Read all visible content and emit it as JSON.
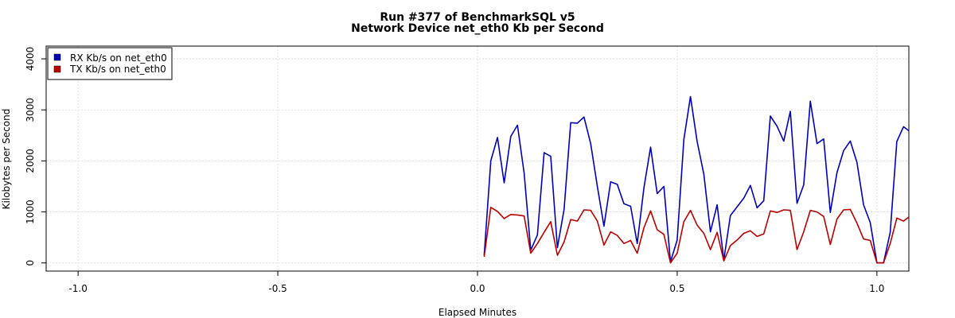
{
  "chart_data": {
    "type": "line",
    "title": "Run #377 of BenchmarkSQL v5",
    "subtitle": "Network Device net_eth0 Kb per Second",
    "xlabel": "Elapsed Minutes",
    "ylabel": "Kilobytes per Second",
    "xlim": [
      -1.08,
      1.08
    ],
    "ylim": [
      -160,
      4250
    ],
    "x_ticks": [
      -1.0,
      -0.5,
      0.0,
      0.5,
      1.0
    ],
    "x_tick_labels": [
      "-1.0",
      "-0.5",
      "0.0",
      "0.5",
      "1.0"
    ],
    "y_ticks": [
      0,
      1000,
      2000,
      3000,
      4000
    ],
    "y_tick_labels": [
      "0",
      "1000",
      "2000",
      "3000",
      "4000"
    ],
    "grid": true,
    "legend_position": "top-left",
    "x": [
      0.0167,
      0.0333,
      0.05,
      0.0667,
      0.0833,
      0.1,
      0.1167,
      0.1333,
      0.15,
      0.1667,
      0.1833,
      0.2,
      0.2167,
      0.2333,
      0.25,
      0.2667,
      0.2833,
      0.3,
      0.3167,
      0.3333,
      0.35,
      0.3667,
      0.3833,
      0.4,
      0.4167,
      0.4333,
      0.45,
      0.4667,
      0.4833,
      0.5,
      0.5167,
      0.5333,
      0.55,
      0.5667,
      0.5833,
      0.6,
      0.6167,
      0.6333,
      0.65,
      0.6667,
      0.6833,
      0.7,
      0.7167,
      0.7333,
      0.75,
      0.7667,
      0.7833,
      0.8,
      0.8167,
      0.8333,
      0.85,
      0.8667,
      0.8833,
      0.9,
      0.9167,
      0.9333,
      0.95,
      0.9667,
      0.9833,
      1.0,
      1.0167,
      1.0333,
      1.05,
      1.0667,
      1.08
    ],
    "series": [
      {
        "name": "RX Kb/s on net_eth0",
        "color": "#0000bb",
        "values": [
          150,
          2000,
          2460,
          1570,
          2480,
          2700,
          1760,
          250,
          550,
          2160,
          2090,
          300,
          1050,
          2750,
          2740,
          2860,
          2340,
          1500,
          720,
          1590,
          1540,
          1160,
          1110,
          380,
          1470,
          2270,
          1360,
          1500,
          20,
          450,
          2420,
          3260,
          2380,
          1740,
          610,
          1140,
          60,
          930,
          1100,
          1270,
          1520,
          1080,
          1220,
          2880,
          2680,
          2390,
          2970,
          1170,
          1530,
          3170,
          2340,
          2430,
          990,
          1770,
          2200,
          2390,
          1970,
          1140,
          790,
          0,
          0,
          600,
          2380,
          2670,
          2590
        ]
      },
      {
        "name": "TX Kb/s on net_eth0",
        "color": "#bb0000",
        "values": [
          120,
          1090,
          1010,
          870,
          950,
          940,
          920,
          190,
          380,
          600,
          810,
          150,
          410,
          850,
          820,
          1040,
          1030,
          820,
          350,
          610,
          540,
          380,
          440,
          190,
          690,
          1020,
          650,
          560,
          0,
          190,
          810,
          1030,
          740,
          580,
          260,
          600,
          40,
          340,
          450,
          580,
          630,
          520,
          570,
          1020,
          990,
          1040,
          1030,
          260,
          610,
          1030,
          1000,
          910,
          360,
          860,
          1040,
          1050,
          780,
          470,
          440,
          0,
          0,
          380,
          880,
          820,
          900
        ]
      }
    ]
  }
}
